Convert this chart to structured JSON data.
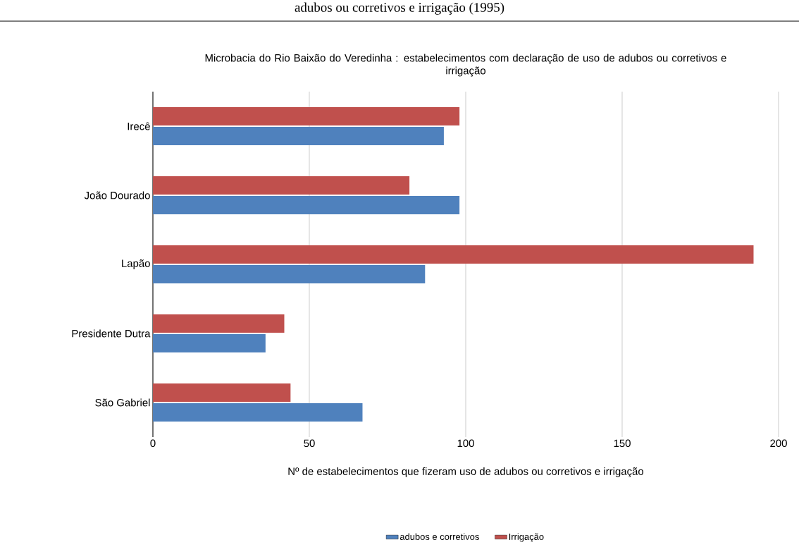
{
  "chart_data": {
    "type": "bar",
    "orientation": "horizontal",
    "title": "Microbacia do Rio Baixão do Veredinha : estabelecimentos  com declaração de uso de adubos ou corretivos  e irrigação",
    "xlabel": "Nº de estabelecimentos que fizeram uso de adubos ou corretivos e irrigação",
    "annotations": [
      "adubos ou corretivos e irrigação (1995)"
    ],
    "categories": [
      "Irecê",
      "João Dourado",
      "Lapão",
      "Presidente Dutra",
      "São Gabriel"
    ],
    "series": [
      {
        "name": "adubos e corretivos",
        "color": "#4f81bd",
        "values": [
          93,
          98,
          87,
          36,
          67
        ]
      },
      {
        "name": "Irrigação",
        "color": "#c0504d",
        "values": [
          98,
          82,
          192,
          42,
          44
        ]
      }
    ],
    "xlim": [
      0,
      200
    ],
    "xticks": [
      0,
      50,
      100,
      150,
      200
    ],
    "grid": "x",
    "legend": "bottom"
  }
}
